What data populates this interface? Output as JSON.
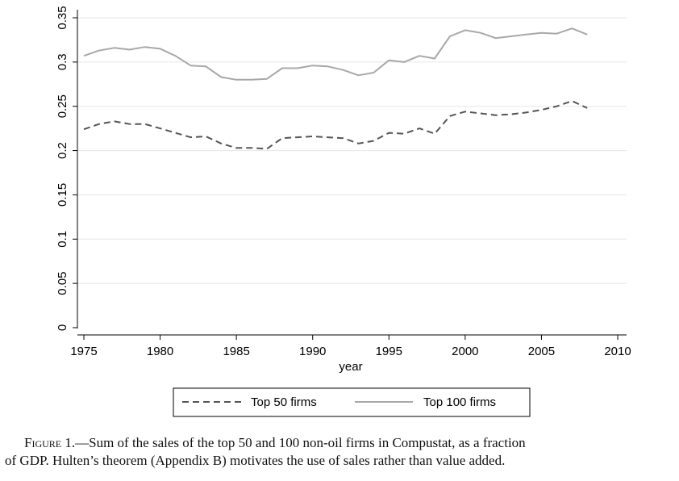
{
  "chart_data": {
    "type": "line",
    "xlabel": "year",
    "ylabel": "",
    "xlim": [
      1975,
      2010
    ],
    "ylim": [
      0,
      0.35
    ],
    "xticks": [
      1975,
      1980,
      1985,
      1990,
      1995,
      2000,
      2005,
      2010
    ],
    "yticks": [
      0,
      0.05,
      0.1,
      0.15,
      0.2,
      0.25,
      0.3,
      0.35
    ],
    "ytick_labels": [
      "0",
      "0.05",
      "0.1",
      "0.15",
      "0.2",
      "0.25",
      "0.3",
      "0.35"
    ],
    "grid": "horizontal",
    "legend_position": "bottom",
    "series": [
      {
        "name": "Top 50 firms",
        "line_style": "dashed",
        "color": "#555555",
        "x": [
          1975,
          1976,
          1977,
          1978,
          1979,
          1980,
          1981,
          1982,
          1983,
          1984,
          1985,
          1986,
          1987,
          1988,
          1989,
          1990,
          1991,
          1992,
          1993,
          1994,
          1995,
          1996,
          1997,
          1998,
          1999,
          2000,
          2001,
          2002,
          2003,
          2004,
          2005,
          2006,
          2007,
          2008
        ],
        "y": [
          0.224,
          0.23,
          0.233,
          0.23,
          0.23,
          0.225,
          0.22,
          0.215,
          0.216,
          0.208,
          0.203,
          0.203,
          0.202,
          0.214,
          0.215,
          0.216,
          0.215,
          0.214,
          0.208,
          0.211,
          0.22,
          0.219,
          0.225,
          0.219,
          0.239,
          0.244,
          0.242,
          0.24,
          0.241,
          0.243,
          0.246,
          0.25,
          0.256,
          0.248
        ]
      },
      {
        "name": "Top 100 firms",
        "line_style": "solid",
        "color": "#a8a8a8",
        "x": [
          1975,
          1976,
          1977,
          1978,
          1979,
          1980,
          1981,
          1982,
          1983,
          1984,
          1985,
          1986,
          1987,
          1988,
          1989,
          1990,
          1991,
          1992,
          1993,
          1994,
          1995,
          1996,
          1997,
          1998,
          1999,
          2000,
          2001,
          2002,
          2003,
          2004,
          2005,
          2006,
          2007,
          2008
        ],
        "y": [
          0.307,
          0.313,
          0.316,
          0.314,
          0.317,
          0.315,
          0.307,
          0.296,
          0.295,
          0.283,
          0.28,
          0.28,
          0.281,
          0.293,
          0.293,
          0.296,
          0.295,
          0.291,
          0.285,
          0.288,
          0.302,
          0.3,
          0.307,
          0.304,
          0.329,
          0.336,
          0.333,
          0.327,
          0.329,
          0.331,
          0.333,
          0.332,
          0.338,
          0.331
        ]
      }
    ]
  },
  "caption": {
    "figure_label": "Figure 1.",
    "line1_text": "—Sum of the sales of the top 50 and 100 non-oil firms in Compustat, as a fraction",
    "line2_text": "of GDP. Hulten’s theorem (Appendix B) motivates the use of sales rather than value added."
  }
}
